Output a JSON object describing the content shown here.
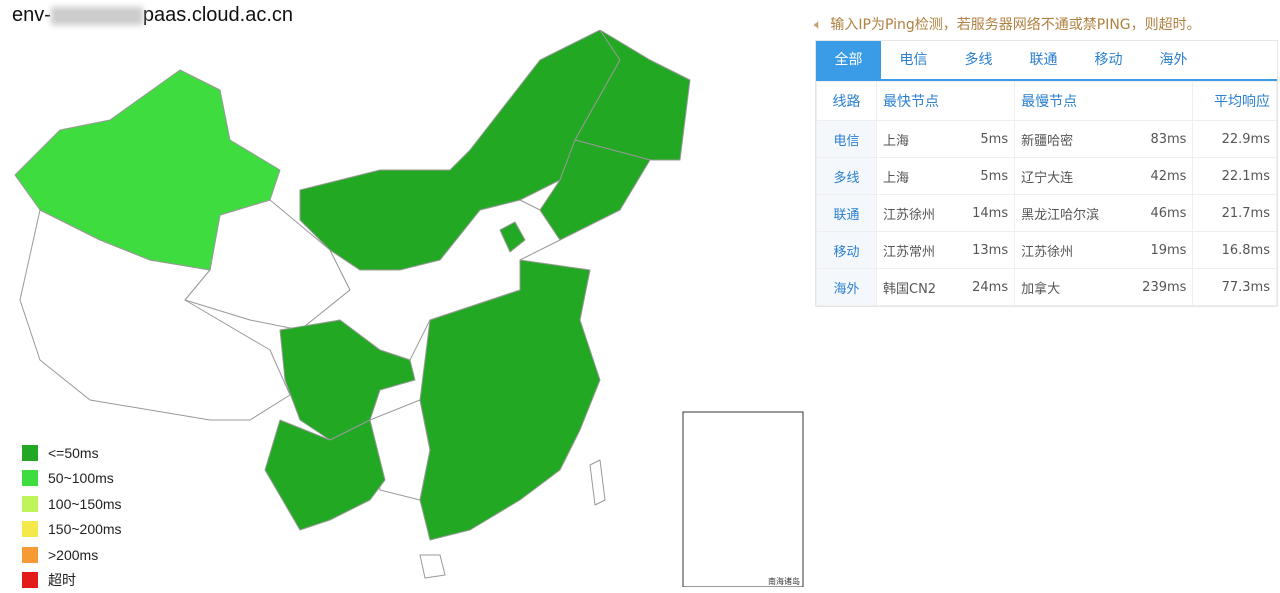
{
  "title": {
    "prefix": "env-",
    "suffix": "paas.cloud.ac.cn"
  },
  "notice": {
    "icon": "speaker-icon",
    "text": "输入IP为Ping检测，若服务器网络不通或禁PING，则超时。"
  },
  "tabs": [
    {
      "label": "全部",
      "active": true
    },
    {
      "label": "电信"
    },
    {
      "label": "多线"
    },
    {
      "label": "联通"
    },
    {
      "label": "移动"
    },
    {
      "label": "海外"
    }
  ],
  "table": {
    "headers": [
      "线路",
      "最快节点",
      "最慢节点",
      "平均响应"
    ],
    "rows": [
      {
        "route": "电信",
        "fast": "上海",
        "fast_ms": "5ms",
        "slow": "新疆哈密",
        "slow_ms": "83ms",
        "avg": "22.9ms"
      },
      {
        "route": "多线",
        "fast": "上海",
        "fast_ms": "5ms",
        "slow": "辽宁大连",
        "slow_ms": "42ms",
        "avg": "22.1ms"
      },
      {
        "route": "联通",
        "fast": "江苏徐州",
        "fast_ms": "14ms",
        "slow": "黑龙江哈尔滨",
        "slow_ms": "46ms",
        "avg": "21.7ms"
      },
      {
        "route": "移动",
        "fast": "江苏常州",
        "fast_ms": "13ms",
        "slow": "江苏徐州",
        "slow_ms": "19ms",
        "avg": "16.8ms"
      },
      {
        "route": "海外",
        "fast": "韩国CN2",
        "fast_ms": "24ms",
        "slow": "加拿大",
        "slow_ms": "239ms",
        "avg": "77.3ms"
      }
    ]
  },
  "legend": [
    {
      "label": "<=50ms",
      "color": "#22a822"
    },
    {
      "label": "50~100ms",
      "color": "#3fdc3f"
    },
    {
      "label": "100~150ms",
      "color": "#bff55a"
    },
    {
      "label": "150~200ms",
      "color": "#f5e84a"
    },
    {
      "label": ">200ms",
      "color": "#f59a35"
    },
    {
      "label": "超时",
      "color": "#e21b1b"
    }
  ],
  "map_labels": {
    "inset": "南海诸岛"
  }
}
